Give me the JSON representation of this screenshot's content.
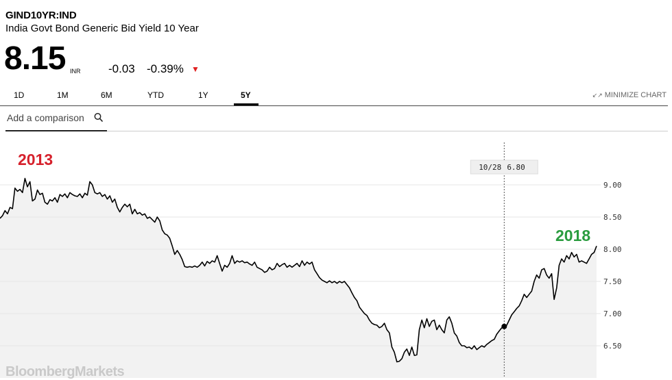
{
  "header": {
    "ticker": "GIND10YR:IND",
    "description": "India Govt Bond Generic Bid Yield 10 Year",
    "price": "8.15",
    "currency": "INR",
    "change": "-0.03",
    "change_pct": "-0.39%",
    "direction_icon": "down-triangle-icon"
  },
  "tabs": [
    {
      "label": "1D",
      "active": false
    },
    {
      "label": "1M",
      "active": false
    },
    {
      "label": "6M",
      "active": false
    },
    {
      "label": "YTD",
      "active": false
    },
    {
      "label": "1Y",
      "active": false
    },
    {
      "label": "5Y",
      "active": true
    }
  ],
  "minimize_label": "MINIMIZE CHART",
  "comparison": {
    "placeholder": "Add a comparison",
    "icon": "search-icon"
  },
  "watermark": "BloombergMarkets",
  "colors": {
    "line": "#000000",
    "area": "#f2f2f2",
    "grid": "#e6e6e6",
    "down": "#e02020",
    "label_2013": "#d6212c",
    "label_2018": "#2a9c3f"
  },
  "chart_data": {
    "type": "area",
    "ylim": [
      6.2,
      9.3
    ],
    "yticks": [
      "9.00",
      "8.50",
      "8.00",
      "7.50",
      "7.00",
      "6.50"
    ],
    "grid": true,
    "annotations": [
      {
        "text": "2013",
        "color": "#d6212c"
      },
      {
        "text": "2018",
        "color": "#2a9c3f"
      }
    ],
    "crosshair": {
      "date": "10/28",
      "value": "6.80"
    },
    "series": [
      {
        "values": [
          8.48,
          8.52,
          8.6,
          8.55,
          8.65,
          8.63,
          8.95,
          8.9,
          8.93,
          8.88,
          9.1,
          8.97,
          9.05,
          8.75,
          8.78,
          8.92,
          8.85,
          8.87,
          8.73,
          8.7,
          8.77,
          8.75,
          8.8,
          8.73,
          8.85,
          8.82,
          8.86,
          8.8,
          8.88,
          8.85,
          8.83,
          8.82,
          8.86,
          8.8,
          8.87,
          8.84,
          9.05,
          9.0,
          8.88,
          8.86,
          8.88,
          8.82,
          8.85,
          8.78,
          8.83,
          8.73,
          8.78,
          8.65,
          8.58,
          8.65,
          8.7,
          8.66,
          8.7,
          8.55,
          8.62,
          8.55,
          8.57,
          8.53,
          8.55,
          8.48,
          8.5,
          8.46,
          8.42,
          8.5,
          8.44,
          8.3,
          8.24,
          8.22,
          8.17,
          8.05,
          7.92,
          7.98,
          7.92,
          7.84,
          7.73,
          7.72,
          7.73,
          7.72,
          7.74,
          7.72,
          7.75,
          7.8,
          7.74,
          7.81,
          7.78,
          7.82,
          7.8,
          7.9,
          7.78,
          7.66,
          7.75,
          7.72,
          7.78,
          7.9,
          7.78,
          7.82,
          7.8,
          7.82,
          7.79,
          7.8,
          7.77,
          7.75,
          7.8,
          7.72,
          7.7,
          7.68,
          7.64,
          7.66,
          7.72,
          7.68,
          7.7,
          7.78,
          7.73,
          7.76,
          7.78,
          7.72,
          7.75,
          7.72,
          7.75,
          7.78,
          7.73,
          7.82,
          7.75,
          7.8,
          7.77,
          7.8,
          7.68,
          7.62,
          7.56,
          7.52,
          7.5,
          7.48,
          7.51,
          7.48,
          7.5,
          7.47,
          7.5,
          7.48,
          7.5,
          7.45,
          7.4,
          7.32,
          7.25,
          7.2,
          7.1,
          7.05,
          7.0,
          6.97,
          6.9,
          6.85,
          6.83,
          6.82,
          6.78,
          6.8,
          6.85,
          6.75,
          6.7,
          6.48,
          6.4,
          6.25,
          6.26,
          6.3,
          6.4,
          6.45,
          6.35,
          6.48,
          6.35,
          6.36,
          6.75,
          6.9,
          6.78,
          6.92,
          6.8,
          6.88,
          6.9,
          6.75,
          6.82,
          6.75,
          6.7,
          6.9,
          6.95,
          6.85,
          6.7,
          6.65,
          6.55,
          6.5,
          6.5,
          6.47,
          6.48,
          6.45,
          6.5,
          6.44,
          6.47,
          6.5,
          6.48,
          6.52,
          6.55,
          6.58,
          6.6,
          6.68,
          6.73,
          6.78,
          6.8,
          6.82,
          6.9,
          6.98,
          7.03,
          7.08,
          7.12,
          7.2,
          7.3,
          7.25,
          7.3,
          7.35,
          7.5,
          7.6,
          7.55,
          7.68,
          7.7,
          7.6,
          7.55,
          7.62,
          7.22,
          7.4,
          7.75,
          7.85,
          7.8,
          7.9,
          7.85,
          7.95,
          7.88,
          7.92,
          7.8,
          7.82,
          7.8,
          7.78,
          7.85,
          7.92,
          7.95,
          8.05
        ]
      }
    ]
  }
}
